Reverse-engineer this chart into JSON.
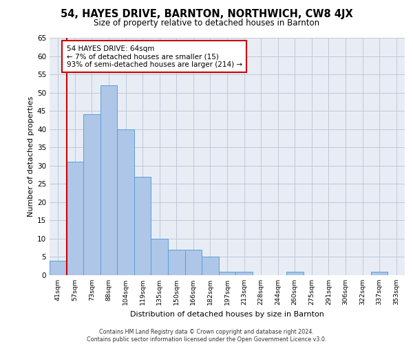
{
  "title": "54, HAYES DRIVE, BARNTON, NORTHWICH, CW8 4JX",
  "subtitle": "Size of property relative to detached houses in Barnton",
  "xlabel": "Distribution of detached houses by size in Barnton",
  "ylabel": "Number of detached properties",
  "categories": [
    "41sqm",
    "57sqm",
    "73sqm",
    "88sqm",
    "104sqm",
    "119sqm",
    "135sqm",
    "150sqm",
    "166sqm",
    "182sqm",
    "197sqm",
    "213sqm",
    "228sqm",
    "244sqm",
    "260sqm",
    "275sqm",
    "291sqm",
    "306sqm",
    "322sqm",
    "337sqm",
    "353sqm"
  ],
  "values": [
    4,
    31,
    44,
    52,
    40,
    27,
    10,
    7,
    7,
    5,
    1,
    1,
    0,
    0,
    1,
    0,
    0,
    0,
    0,
    1,
    0
  ],
  "bar_color": "#aec6e8",
  "bar_edge_color": "#5a9fd4",
  "annotation_text": "54 HAYES DRIVE: 64sqm\n← 7% of detached houses are smaller (15)\n93% of semi-detached houses are larger (214) →",
  "annotation_box_color": "#ffffff",
  "annotation_box_edge_color": "#cc0000",
  "red_line_color": "#cc0000",
  "ylim": [
    0,
    65
  ],
  "yticks": [
    0,
    5,
    10,
    15,
    20,
    25,
    30,
    35,
    40,
    45,
    50,
    55,
    60,
    65
  ],
  "grid_color": "#c0c8d8",
  "background_color": "#e8edf5",
  "footer_line1": "Contains HM Land Registry data © Crown copyright and database right 2024.",
  "footer_line2": "Contains public sector information licensed under the Open Government Licence v3.0."
}
